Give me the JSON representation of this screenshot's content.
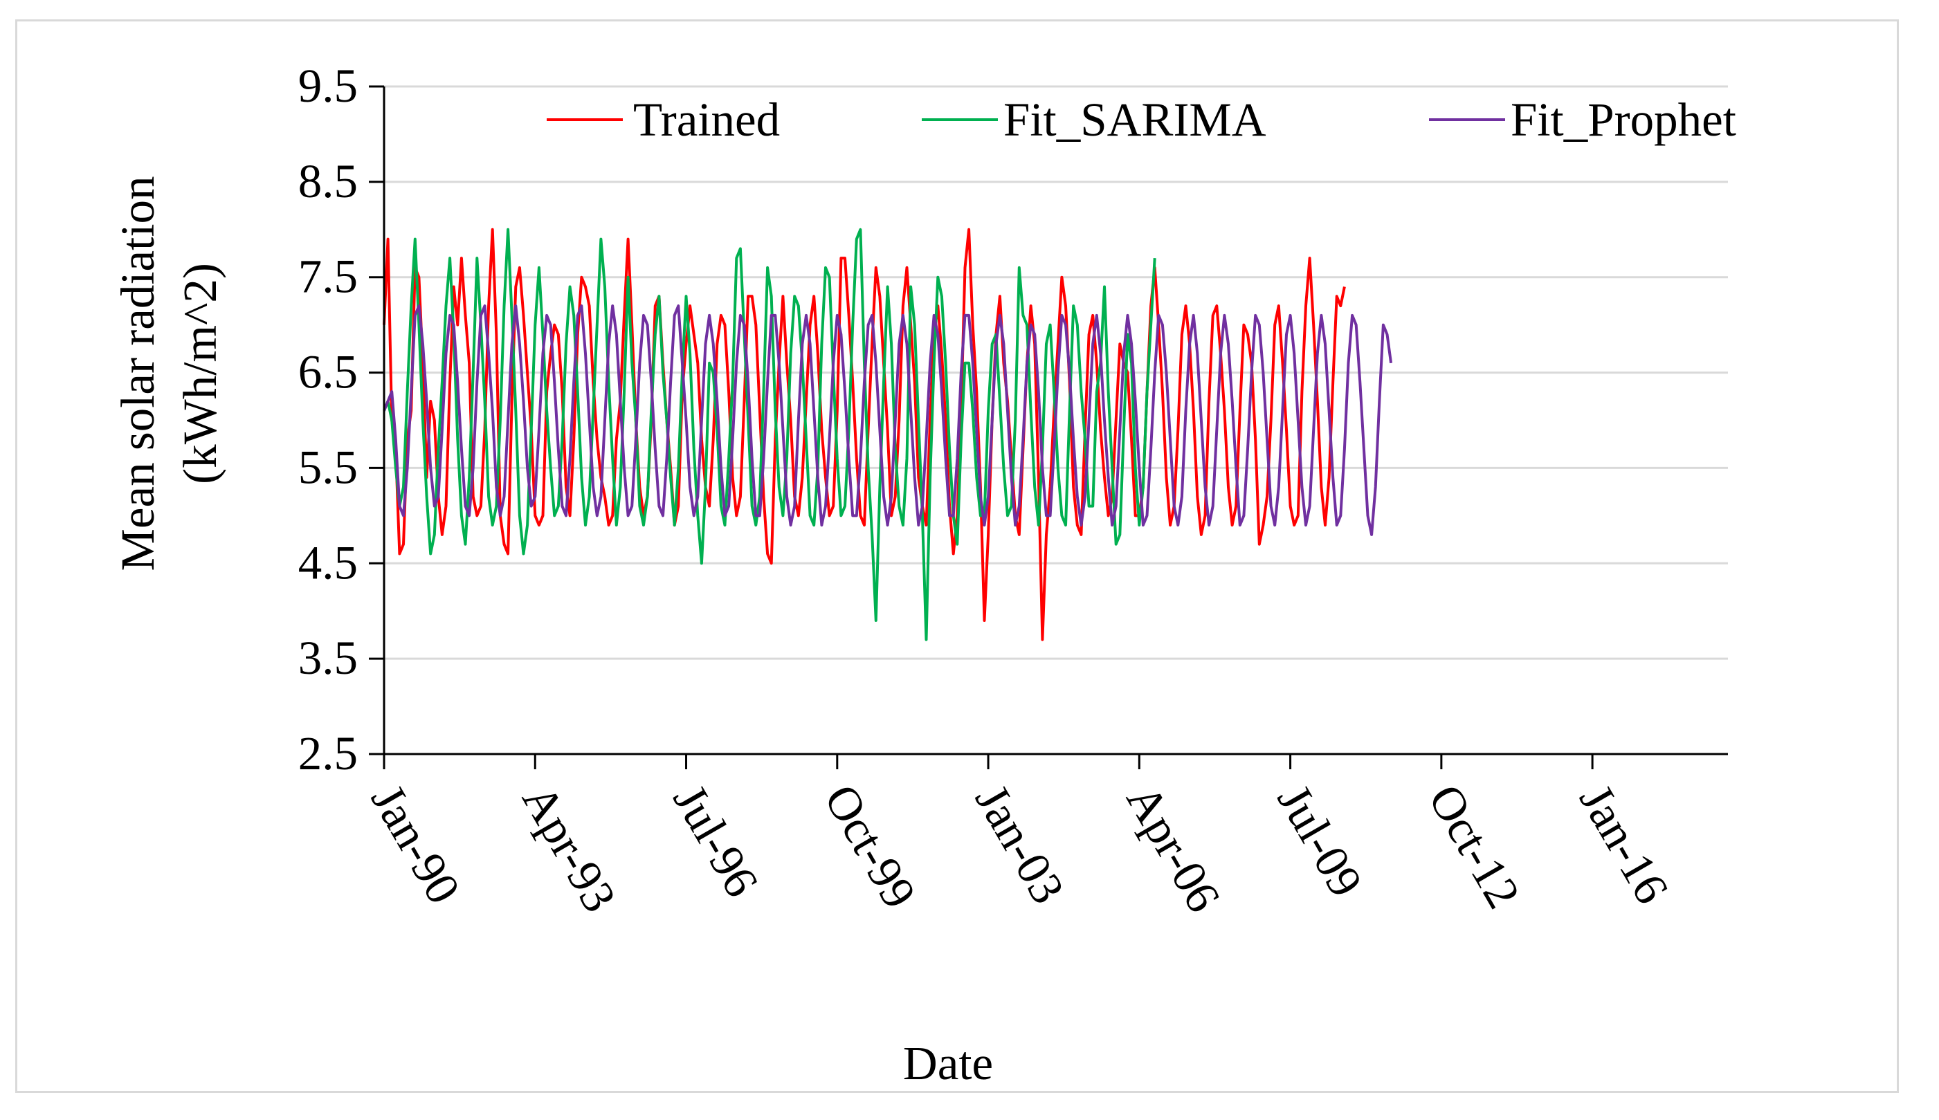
{
  "chart_data": {
    "type": "line",
    "title": "",
    "xlabel": "Date",
    "ylabel_line1": "Mean solar radiation",
    "ylabel_line2": "(kWh/m^2)",
    "ylim": [
      2.5,
      9.5
    ],
    "yticks": [
      "2.5",
      "3.5",
      "4.5",
      "5.5",
      "6.5",
      "7.5",
      "8.5",
      "9.5"
    ],
    "xlim": [
      "1990-01",
      "2018-12"
    ],
    "xtick_labels": [
      "Jan-90",
      "Apr-93",
      "Jul-96",
      "Oct-99",
      "Jan-03",
      "Apr-06",
      "Jul-09",
      "Oct-12",
      "Jan-16"
    ],
    "grid": "horizontal",
    "legend_position": "top",
    "series": [
      {
        "name": "Trained",
        "color": "#ff0000",
        "x_start": "1990-01",
        "values": [
          7.0,
          7.9,
          6.0,
          5.7,
          4.6,
          4.7,
          5.8,
          6.1,
          7.6,
          7.5,
          6.6,
          5.4,
          6.2,
          6.0,
          5.2,
          4.8,
          5.1,
          6.4,
          7.4,
          7.0,
          7.7,
          7.1,
          6.6,
          5.2,
          5.0,
          5.1,
          5.9,
          7.2,
          8.0,
          6.9,
          5.0,
          4.7,
          4.6,
          6.2,
          7.4,
          7.6,
          7.1,
          6.5,
          5.9,
          5.0,
          4.9,
          5.0,
          6.3,
          6.7,
          7.0,
          6.9,
          6.3,
          5.3,
          5.0,
          5.8,
          6.9,
          7.5,
          7.4,
          7.2,
          6.4,
          5.8,
          5.4,
          5.2,
          4.9,
          5.0,
          5.8,
          6.2,
          7.1,
          7.9,
          7.0,
          6.0,
          5.3,
          5.0,
          5.2,
          6.0,
          7.2,
          7.3,
          6.6,
          6.0,
          5.5,
          4.9,
          5.1,
          6.3,
          6.8,
          7.2,
          6.9,
          6.6,
          5.8,
          5.3,
          5.1,
          5.8,
          6.8,
          7.1,
          7.0,
          6.3,
          5.4,
          5.0,
          5.2,
          6.2,
          7.3,
          7.3,
          7.0,
          6.1,
          5.2,
          4.6,
          4.5,
          5.8,
          6.6,
          7.3,
          6.6,
          6.0,
          5.2,
          5.0,
          5.4,
          6.2,
          7.0,
          7.3,
          6.7,
          5.9,
          5.4,
          5.0,
          5.1,
          6.1,
          7.7,
          7.7,
          7.1,
          6.4,
          5.6,
          5.0,
          4.9,
          5.9,
          6.8,
          7.6,
          7.3,
          6.6,
          5.9,
          5.0,
          5.2,
          6.0,
          7.2,
          7.6,
          7.0,
          6.4,
          5.4,
          5.1,
          4.9,
          6.0,
          6.9,
          7.2,
          6.7,
          6.0,
          5.1,
          4.6,
          5.0,
          6.1,
          7.6,
          8.0,
          7.0,
          6.3,
          5.3,
          3.9,
          4.8,
          6.0,
          6.9,
          7.3,
          6.6,
          6.2,
          5.6,
          5.0,
          4.8,
          5.7,
          6.6,
          7.2,
          6.8,
          5.4,
          3.7,
          4.8,
          5.3,
          6.1,
          6.8,
          7.5,
          7.2,
          6.4,
          5.3,
          4.9,
          4.8,
          5.9,
          6.9,
          7.1,
          6.6,
          5.9,
          5.4,
          5.0,
          5.2,
          6.0,
          6.8,
          6.6,
          6.5,
          5.8,
          5.0,
          5.0,
          5.3,
          6.3,
          7.2,
          7.6,
          7.0,
          6.3,
          5.4,
          4.9,
          5.1,
          5.9,
          6.9,
          7.2,
          6.8,
          6.1,
          5.2,
          4.8,
          5.0,
          6.2,
          7.1,
          7.2,
          6.7,
          6.1,
          5.3,
          4.9,
          5.1,
          6.1,
          7.0,
          6.9,
          6.6,
          5.8,
          4.7,
          4.9,
          5.2,
          6.0,
          7.0,
          7.2,
          6.6,
          5.9,
          5.1,
          4.9,
          5.0,
          6.3,
          7.2,
          7.7,
          7.0,
          6.2,
          5.3,
          4.9,
          5.4,
          6.4,
          7.3,
          7.2,
          7.4
        ]
      },
      {
        "name": "Fit_SARIMA",
        "color": "#00b050",
        "x_start": "1990-01",
        "values": [
          6.1,
          6.2,
          6.0,
          5.5,
          5.1,
          5.3,
          6.3,
          7.2,
          7.9,
          7.0,
          6.0,
          5.2,
          4.6,
          4.8,
          5.7,
          6.4,
          7.2,
          7.7,
          6.9,
          5.8,
          5.0,
          4.7,
          5.4,
          6.5,
          7.7,
          7.0,
          6.2,
          5.2,
          4.9,
          5.1,
          6.0,
          7.2,
          8.0,
          7.1,
          6.1,
          5.0,
          4.6,
          4.9,
          5.9,
          7.0,
          7.6,
          6.9,
          6.1,
          5.5,
          5.0,
          5.1,
          5.8,
          6.8,
          7.4,
          7.1,
          6.3,
          5.4,
          4.9,
          5.2,
          6.1,
          7.0,
          7.9,
          7.4,
          6.4,
          5.6,
          4.9,
          5.3,
          6.3,
          7.5,
          6.6,
          6.0,
          5.1,
          4.9,
          5.2,
          6.1,
          6.9,
          7.3,
          6.5,
          6.0,
          5.4,
          4.9,
          5.5,
          6.5,
          7.3,
          6.7,
          5.7,
          5.0,
          4.5,
          5.3,
          6.6,
          6.5,
          5.9,
          5.1,
          4.9,
          5.6,
          6.4,
          7.7,
          7.8,
          6.9,
          6.0,
          5.1,
          4.9,
          5.2,
          6.3,
          7.6,
          7.3,
          6.1,
          5.3,
          5.0,
          5.6,
          6.7,
          7.3,
          7.2,
          6.6,
          5.8,
          5.0,
          4.9,
          5.5,
          6.8,
          7.6,
          7.5,
          6.5,
          5.6,
          5.0,
          5.1,
          5.9,
          7.0,
          7.9,
          8.0,
          6.6,
          5.5,
          4.8,
          3.9,
          5.3,
          6.4,
          7.4,
          6.8,
          5.7,
          5.1,
          4.9,
          5.6,
          7.4,
          7.0,
          6.0,
          5.0,
          3.7,
          5.4,
          6.6,
          7.5,
          7.3,
          6.6,
          5.7,
          5.0,
          4.7,
          5.8,
          6.6,
          6.6,
          6.1,
          5.4,
          5.0,
          5.0,
          6.1,
          6.8,
          6.9,
          6.2,
          5.5,
          5.0,
          5.1,
          6.0,
          7.6,
          7.1,
          7.0,
          6.1,
          5.3,
          4.9,
          5.7,
          6.8,
          7.0,
          6.3,
          5.5,
          5.0,
          4.9,
          6.1,
          7.2,
          7.0,
          6.3,
          5.8,
          5.1,
          5.1,
          6.3,
          6.6,
          7.4,
          6.3,
          5.5,
          4.7,
          4.8,
          5.9,
          6.9,
          6.6,
          5.5,
          4.9,
          5.3,
          6.3,
          7.0,
          7.7
        ]
      },
      {
        "name": "Fit_Prophet",
        "color": "#7030a0",
        "x_start": "1990-01",
        "values": [
          6.1,
          6.2,
          6.3,
          5.8,
          5.1,
          5.0,
          5.5,
          6.3,
          7.1,
          7.2,
          6.8,
          6.2,
          5.5,
          5.1,
          5.2,
          5.9,
          6.7,
          7.1,
          7.0,
          6.4,
          5.7,
          5.1,
          5.0,
          5.5,
          6.4,
          7.1,
          7.2,
          6.7,
          6.1,
          5.3,
          5.0,
          5.2,
          6.0,
          6.8,
          7.2,
          6.8,
          6.2,
          5.5,
          5.1,
          5.2,
          5.9,
          6.7,
          7.1,
          7.0,
          6.4,
          5.7,
          5.1,
          5.0,
          5.6,
          6.4,
          7.1,
          7.2,
          6.7,
          6.0,
          5.3,
          5.0,
          5.2,
          6.0,
          6.8,
          7.2,
          6.9,
          6.2,
          5.5,
          5.0,
          5.1,
          5.8,
          6.6,
          7.1,
          7.0,
          6.4,
          5.7,
          5.1,
          5.0,
          5.6,
          6.4,
          7.1,
          7.2,
          6.6,
          6.0,
          5.3,
          5.0,
          5.2,
          6.0,
          6.8,
          7.1,
          6.8,
          6.2,
          5.5,
          5.0,
          5.1,
          5.8,
          6.6,
          7.1,
          7.0,
          6.4,
          5.6,
          5.0,
          5.0,
          5.6,
          6.4,
          7.1,
          7.1,
          6.6,
          5.9,
          5.2,
          4.9,
          5.1,
          6.0,
          6.8,
          7.1,
          6.8,
          6.1,
          5.4,
          4.9,
          5.1,
          5.8,
          6.6,
          7.1,
          6.9,
          6.3,
          5.6,
          5.0,
          5.0,
          5.6,
          6.4,
          7.0,
          7.1,
          6.6,
          5.9,
          5.2,
          4.9,
          5.2,
          6.0,
          6.8,
          7.1,
          6.8,
          6.1,
          5.4,
          4.9,
          5.1,
          5.8,
          6.6,
          7.1,
          6.9,
          6.3,
          5.6,
          5.0,
          5.0,
          5.6,
          6.5,
          7.1,
          7.1,
          6.6,
          5.9,
          5.2,
          4.9,
          5.2,
          6.0,
          6.8,
          7.1,
          6.8,
          6.1,
          5.4,
          4.9,
          5.1,
          5.8,
          6.6,
          7.0,
          6.9,
          6.3,
          5.5,
          5.0,
          5.0,
          5.7,
          6.5,
          7.1,
          7.0,
          6.5,
          5.8,
          5.2,
          4.9,
          5.2,
          6.0,
          6.8,
          7.1,
          6.7,
          6.0,
          5.4,
          4.9,
          5.1,
          5.9,
          6.7,
          7.1,
          6.8,
          6.2,
          5.5,
          4.9,
          5.0,
          5.7,
          6.5,
          7.1,
          7.0,
          6.5,
          5.8,
          5.1,
          4.9,
          5.2,
          6.1,
          6.8,
          7.1,
          6.7,
          6.0,
          5.3,
          4.9,
          5.1,
          5.9,
          6.7,
          7.1,
          6.8,
          6.2,
          5.5,
          4.9,
          5.0,
          5.7,
          6.5,
          7.1,
          7.0,
          6.5,
          5.8,
          5.1,
          4.9,
          5.3,
          6.1,
          6.9,
          7.1,
          6.7,
          6.0,
          5.3,
          4.9,
          5.1,
          5.9,
          6.7,
          7.1,
          6.8,
          6.1,
          5.4,
          4.9,
          5.0,
          5.7,
          6.6,
          7.1,
          7.0,
          6.4,
          5.7,
          5.0,
          4.8,
          5.3,
          6.2,
          7.0,
          6.9,
          6.6
        ]
      }
    ]
  }
}
